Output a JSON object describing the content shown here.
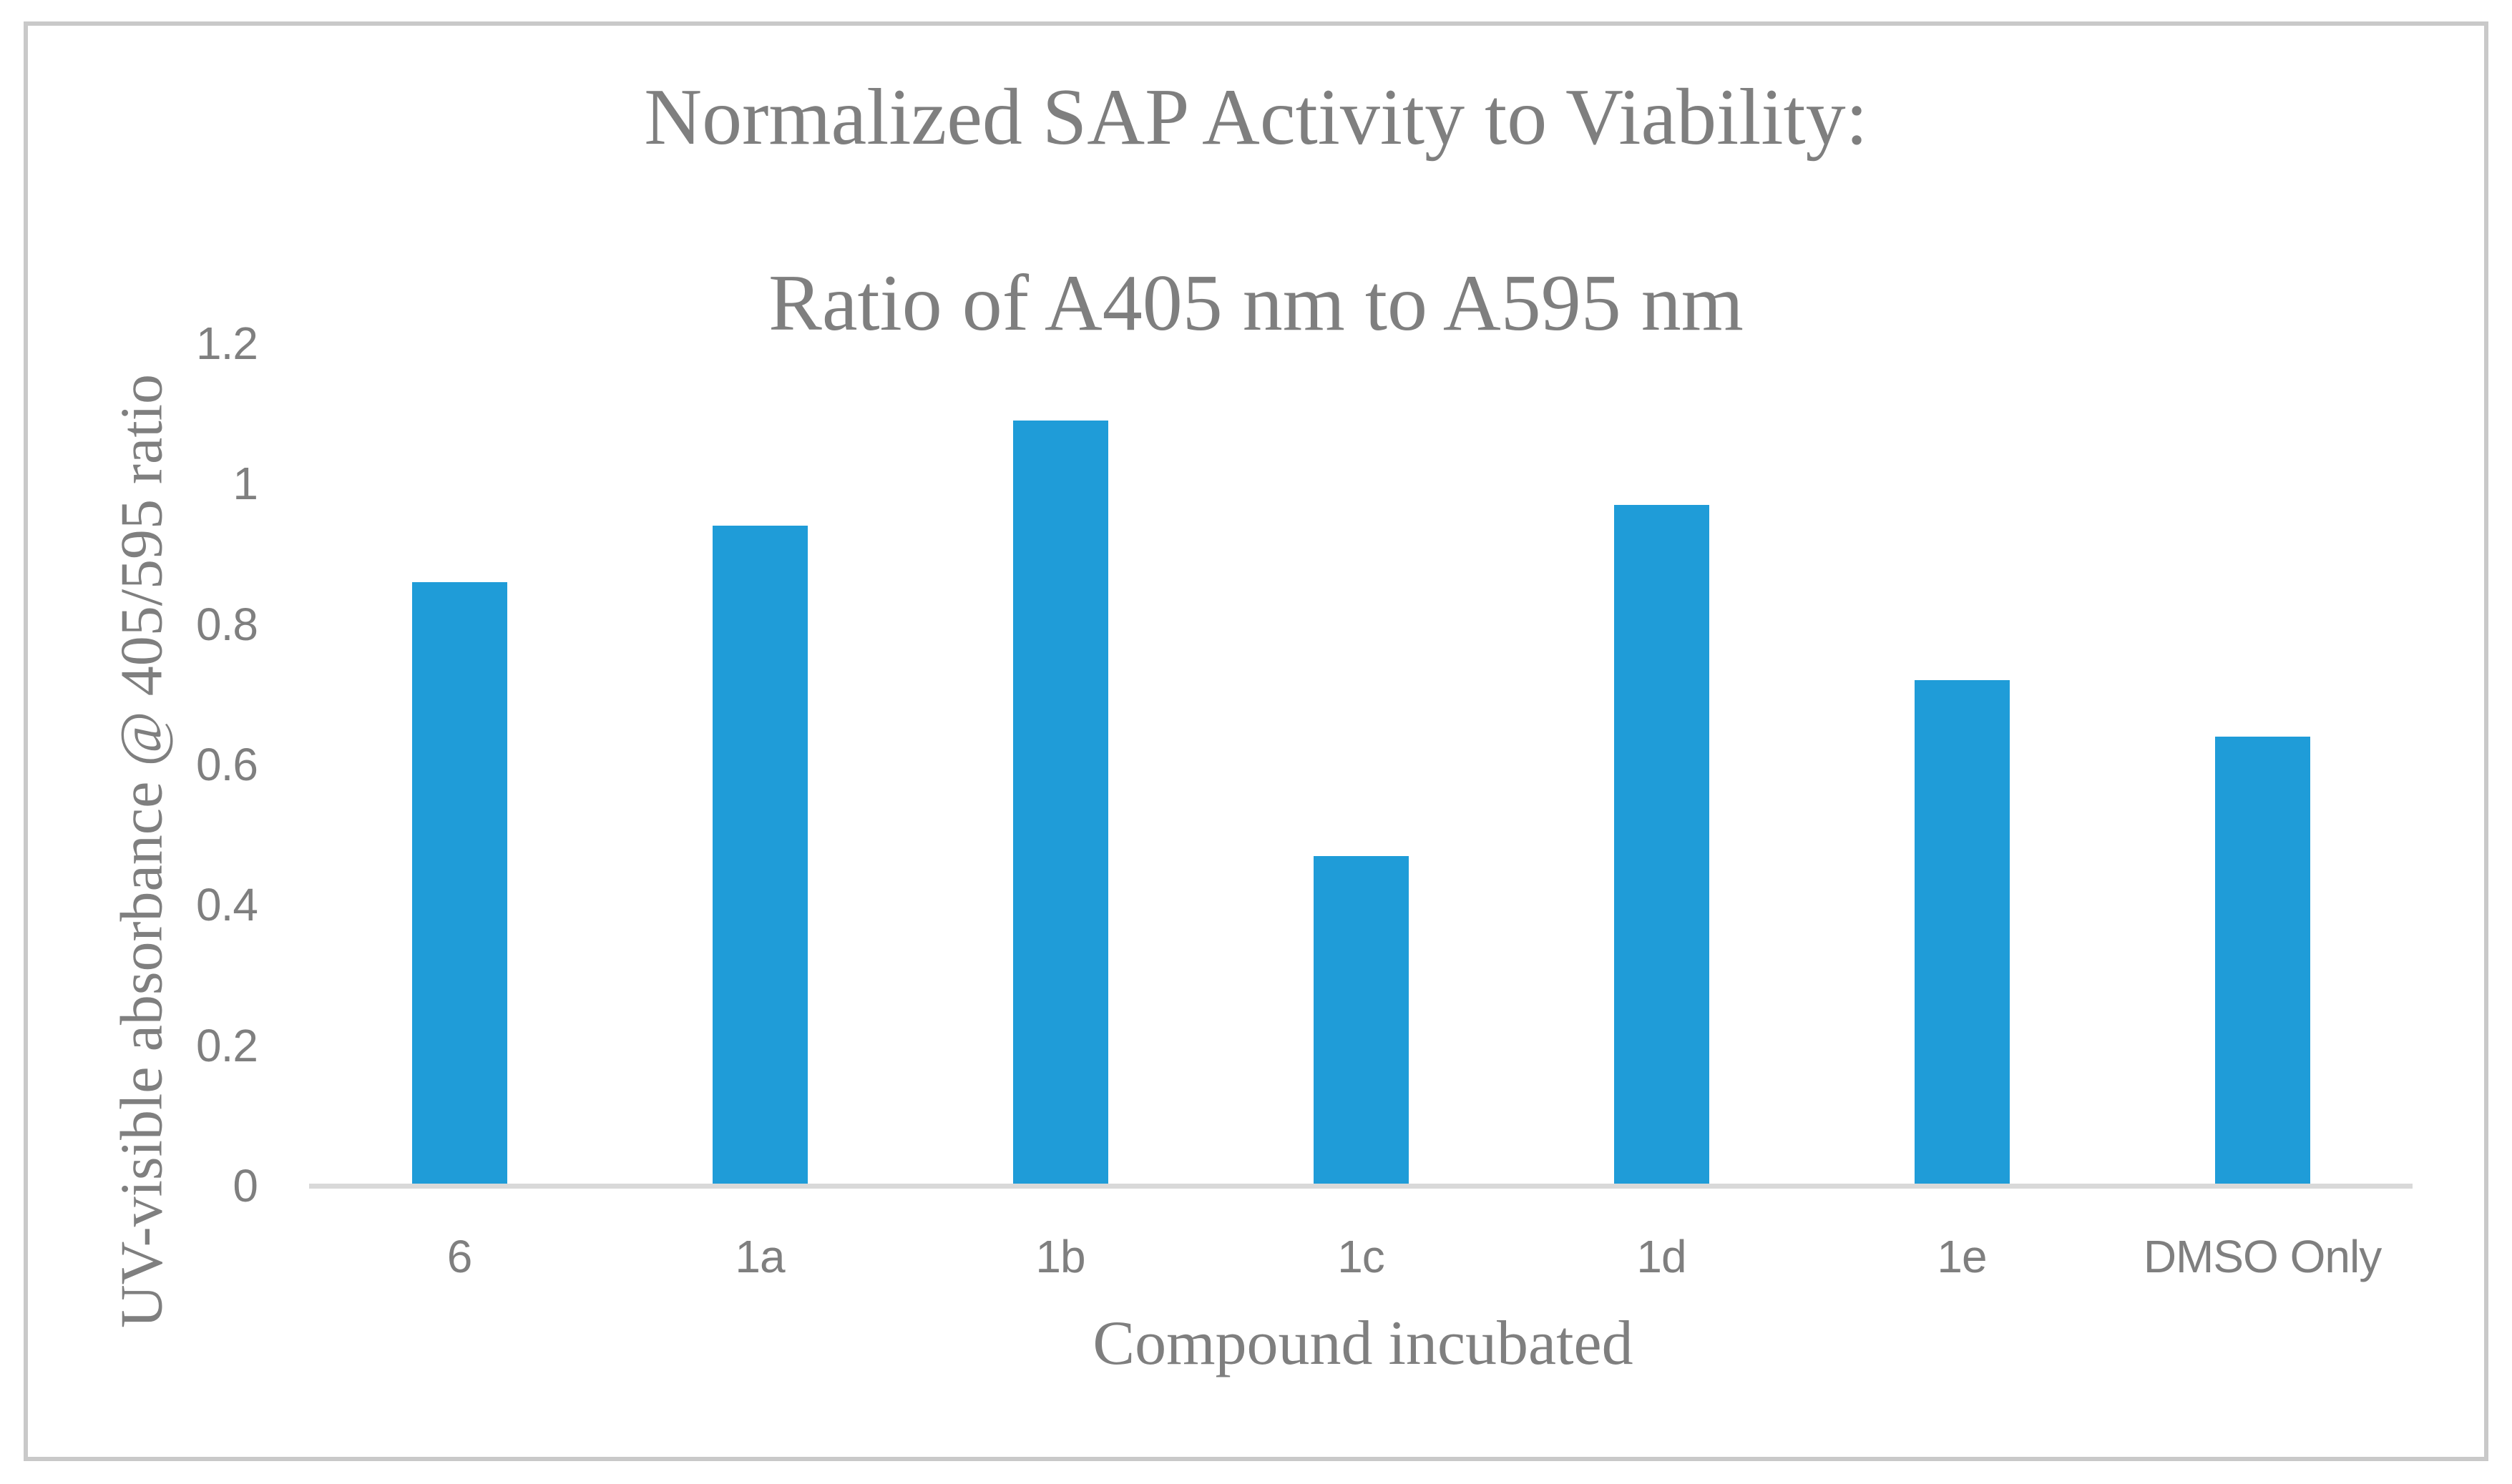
{
  "title": {
    "line1": "Normalized SAP Activity to Viability:",
    "line2": "Ratio of A405 nm to A595 nm"
  },
  "chart_data": {
    "type": "bar",
    "title": "Normalized SAP Activity to Viability: Ratio of A405 nm to A595 nm",
    "categories": [
      "6",
      "1a",
      "1b",
      "1c",
      "1d",
      "1e",
      "DMSO Only"
    ],
    "values": [
      0.86,
      0.94,
      1.09,
      0.47,
      0.97,
      0.72,
      0.64
    ],
    "xlabel": "Compound incubated",
    "ylabel": "UV-visible absorbance @ 405/595 ratio",
    "ylim": [
      0,
      1.2
    ],
    "yticks": [
      0,
      0.2,
      0.4,
      0.6,
      0.8,
      1,
      1.2
    ],
    "ytick_labels": [
      "0",
      "0.2",
      "0.4",
      "0.6",
      "0.8",
      "1",
      "1.2"
    ],
    "grid": false,
    "legend": false,
    "colors": {
      "bar": "#1f9cd8",
      "axis_line": "#d9d9d9",
      "text": "#7f7f7f",
      "frame_border": "#c9c9c9"
    }
  }
}
